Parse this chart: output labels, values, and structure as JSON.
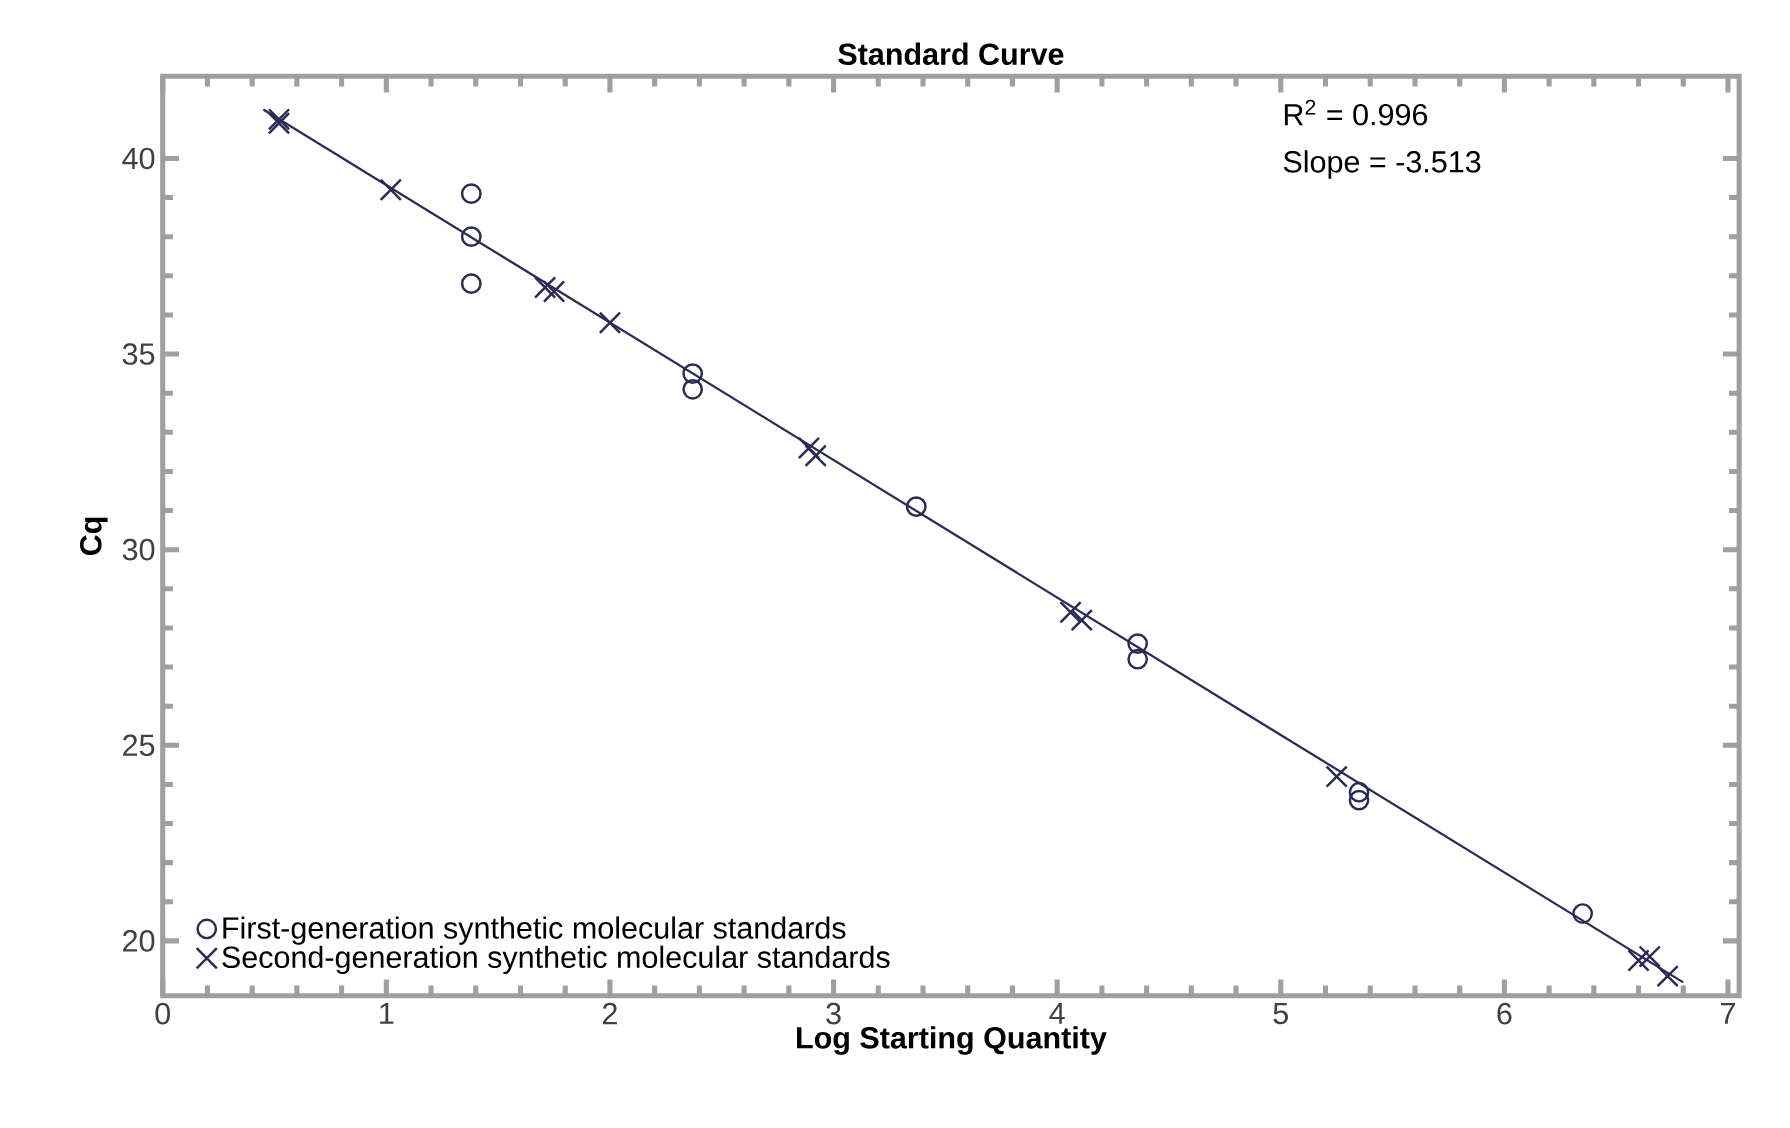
{
  "chart_data": {
    "type": "scatter",
    "title": "Standard Curve",
    "xlabel": "Log Starting Quantity",
    "ylabel": "Cq",
    "xlim": [
      0,
      7.05
    ],
    "ylim": [
      18.6,
      42.1
    ],
    "xticks": [
      0,
      1,
      2,
      3,
      4,
      5,
      6,
      7
    ],
    "yticks": [
      20,
      25,
      30,
      35,
      40
    ],
    "legend": "bottom left",
    "grid": false,
    "annotations": [
      "R$^{2}$ = 0.996",
      "Slope = -3.513"
    ],
    "series": [
      {
        "name": "First-generation synthetic molecular standards",
        "color": "#2b2a55",
        "marker": "circle",
        "x": [
          1.38,
          1.38,
          1.38,
          2.37,
          2.37,
          3.37,
          4.36,
          4.36,
          5.35,
          5.35,
          6.35
        ],
        "values": [
          39.1,
          38.0,
          36.8,
          34.5,
          34.1,
          31.1,
          27.6,
          27.2,
          23.8,
          23.6,
          20.7
        ]
      },
      {
        "name": "Second-generation synthetic molecular standards",
        "color": "#2b2a55",
        "marker": "cross",
        "x": [
          0.52,
          0.52,
          1.02,
          1.71,
          1.75,
          2.0,
          2.89,
          2.92,
          4.06,
          4.11,
          5.25,
          6.6,
          6.65,
          6.73
        ],
        "values": [
          41.0,
          40.9,
          39.2,
          36.7,
          36.6,
          35.8,
          32.6,
          32.4,
          28.4,
          28.2,
          24.2,
          19.5,
          19.6,
          19.1
        ]
      },
      {
        "type": "line",
        "color": "#2b2a55",
        "marker": "none",
        "line_style": "solid",
        "x": [
          0.45,
          6.8
        ],
        "values": [
          41.25,
          18.94
        ]
      }
    ]
  }
}
